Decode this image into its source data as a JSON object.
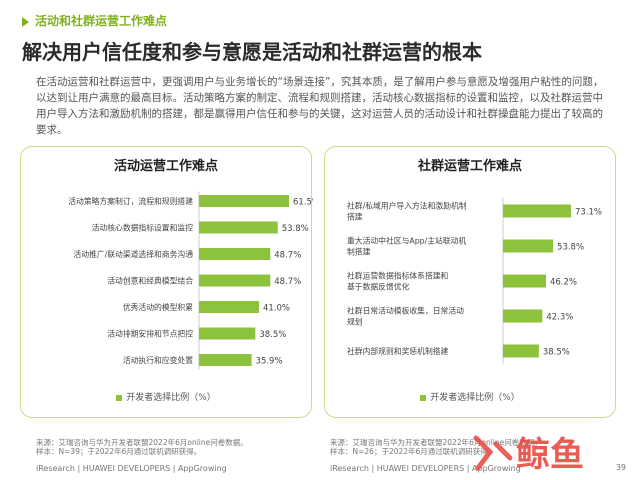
{
  "section_tag": "活动和社群运营工作难点",
  "headline": "解决用户信任度和参与意愿是活动和社群运营的根本",
  "intro": "在活动运营和社群运营中，更强调用户与业务增长的“场景连接”，究其本质，是了解用户参与意愿及增强用户粘性的问题，以达到让用户满意的最高目标。活动策略方案的制定、流程和规则搭建，活动核心数据指标的设置和监控，以及社群运营中用户导入方法和激励机制的搭建，都是赢得用户信任和参与的关键，这对运营人员的活动设计和社群操盘能力提出了较高的要求。",
  "colors": {
    "bar": "#8cc23c",
    "accent": "#7fb01e",
    "panel_border": "#c8de8c"
  },
  "chart_data": [
    {
      "type": "bar",
      "orientation": "horizontal",
      "title": "活动运营工作难点",
      "categories": [
        "活动策略方案制订，流程和规则搭建",
        "活动核心数据指标设置和监控",
        "活动推广/联动渠道选择和商务沟通",
        "活动创意和经典模型结合",
        "优秀活动的模型积累",
        "活动排期安排和节点把控",
        "活动执行和应变处置"
      ],
      "values": [
        61.5,
        53.8,
        48.7,
        48.7,
        41.0,
        38.5,
        35.9
      ],
      "value_labels": [
        "61.5%",
        "53.8%",
        "48.7%",
        "48.7%",
        "41.0%",
        "38.5%",
        "35.9%"
      ],
      "legend": "开发者选择比例（%）"
    },
    {
      "type": "bar",
      "orientation": "horizontal",
      "title": "社群运营工作难点",
      "categories": [
        [
          "社群/私域用户导入方法和激励机制",
          "搭建"
        ],
        [
          "重大活动中社区与App/主站联动机",
          "制搭建"
        ],
        [
          "社群运营数据指标体系搭建和",
          "基于数据反馈优化"
        ],
        [
          "社群日常活动模板收集，日常活动",
          "规划"
        ],
        [
          "社群内部规则和奖惩机制搭建"
        ]
      ],
      "values": [
        73.1,
        53.8,
        46.2,
        42.3,
        38.5
      ],
      "value_labels": [
        "73.1%",
        "53.8%",
        "46.2%",
        "42.3%",
        "38.5%"
      ],
      "legend": "开发者选择比例（%）"
    }
  ],
  "source_left": [
    "来源：艾瑞咨询与华为开发者联盟2022年6月online问卷数据。",
    "样本：N=39；于2022年6月通过联机调研获得。"
  ],
  "source_right": [
    "来源：艾瑞咨询与华为开发者联盟2022年6月online问卷数据。",
    "样本：N=26；于2022年6月通过联机调研获得。"
  ],
  "footer_left": "iResearch | HUAWEI DEVELOPERS | AppGrowing",
  "footer_right": "iResearch | HUAWEI DEVELOPERS | AppGrowing",
  "page_number": "39",
  "watermark_text": "鲸鱼"
}
